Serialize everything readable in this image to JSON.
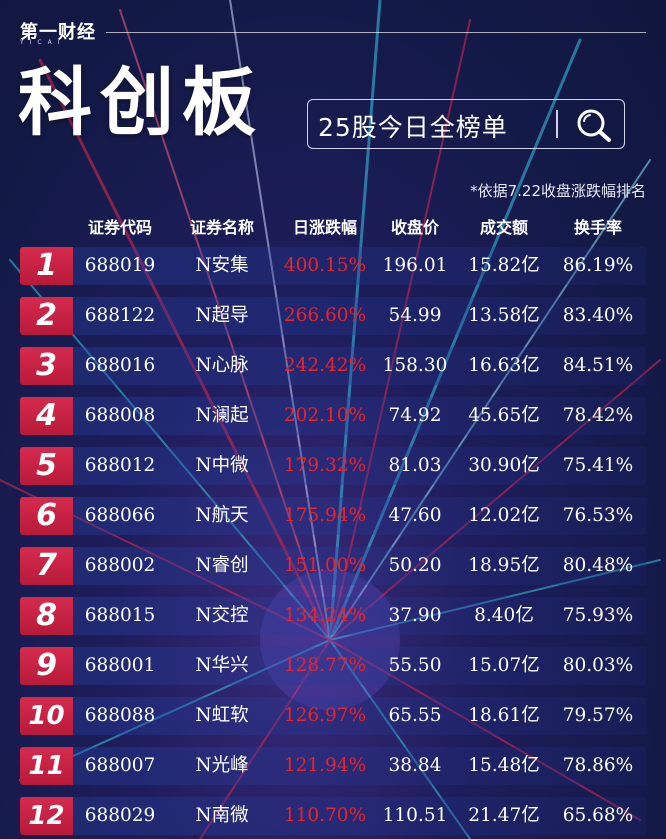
{
  "brand": {
    "name": "第一财经",
    "sub": "YICAI"
  },
  "title": "科创板",
  "search": {
    "text": "25股今日全榜单"
  },
  "note": "*依据7.22收盘涨跌幅排名",
  "headers": [
    "证券代码",
    "证券名称",
    "日涨跌幅",
    "收盘价",
    "成交额",
    "换手率"
  ],
  "colors": {
    "rank_bg": "#c8203f",
    "change_text": "#e8232e",
    "background": "#1e1d5c"
  },
  "rows": [
    {
      "rank": "1",
      "code": "688019",
      "name": "N安集",
      "change": "400.15%",
      "close": "196.01",
      "turnover": "15.82亿",
      "rate": "86.19%"
    },
    {
      "rank": "2",
      "code": "688122",
      "name": "N超导",
      "change": "266.60%",
      "close": "54.99",
      "turnover": "13.58亿",
      "rate": "83.40%"
    },
    {
      "rank": "3",
      "code": "688016",
      "name": "N心脉",
      "change": "242.42%",
      "close": "158.30",
      "turnover": "16.63亿",
      "rate": "84.51%"
    },
    {
      "rank": "4",
      "code": "688008",
      "name": "N澜起",
      "change": "202.10%",
      "close": "74.92",
      "turnover": "45.65亿",
      "rate": "78.42%"
    },
    {
      "rank": "5",
      "code": "688012",
      "name": "N中微",
      "change": "179.32%",
      "close": "81.03",
      "turnover": "30.90亿",
      "rate": "75.41%"
    },
    {
      "rank": "6",
      "code": "688066",
      "name": "N航天",
      "change": "175.94%",
      "close": "47.60",
      "turnover": "12.02亿",
      "rate": "76.53%"
    },
    {
      "rank": "7",
      "code": "688002",
      "name": "N睿创",
      "change": "151.00%",
      "close": "50.20",
      "turnover": "18.95亿",
      "rate": "80.48%"
    },
    {
      "rank": "8",
      "code": "688015",
      "name": "N交控",
      "change": "134.24%",
      "close": "37.90",
      "turnover": "8.40亿",
      "rate": "75.93%"
    },
    {
      "rank": "9",
      "code": "688001",
      "name": "N华兴",
      "change": "128.77%",
      "close": "55.50",
      "turnover": "15.07亿",
      "rate": "80.03%"
    },
    {
      "rank": "10",
      "code": "688088",
      "name": "N虹软",
      "change": "126.97%",
      "close": "65.55",
      "turnover": "18.61亿",
      "rate": "79.57%"
    },
    {
      "rank": "11",
      "code": "688007",
      "name": "N光峰",
      "change": "121.94%",
      "close": "38.84",
      "turnover": "15.48亿",
      "rate": "78.86%"
    },
    {
      "rank": "12",
      "code": "688029",
      "name": "N南微",
      "change": "110.70%",
      "close": "110.51",
      "turnover": "21.47亿",
      "rate": "65.68%"
    }
  ]
}
